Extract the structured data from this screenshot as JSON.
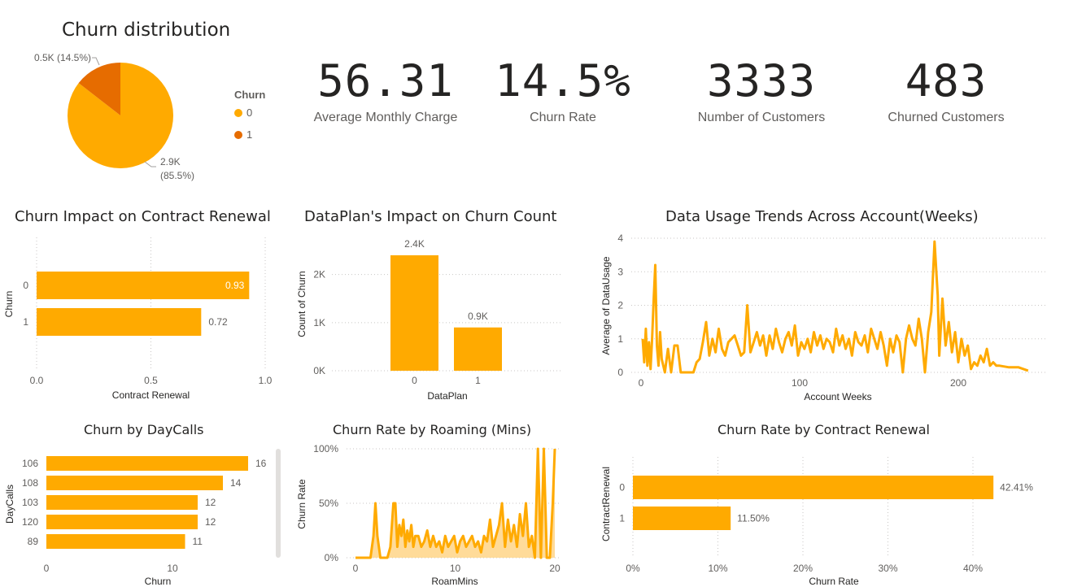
{
  "colors": {
    "orange": "#FFAA00",
    "dark_orange": "#E66C00",
    "fill": "#FFD27F"
  },
  "kpis": [
    {
      "value": "56.31",
      "label": "Average Monthly Charge"
    },
    {
      "value": "14.5%",
      "label": "Churn Rate"
    },
    {
      "value": "3333",
      "label": "Number of Customers"
    },
    {
      "value": "483",
      "label": "Churned Customers"
    }
  ],
  "chart_data": [
    {
      "type": "pie",
      "title": "Churn distribution",
      "legend_title": "Churn",
      "legend_placement": "right",
      "categories": [
        "0",
        "1"
      ],
      "values": [
        2850,
        483
      ],
      "data_labels": [
        "2.9K (85.5%)",
        "0.5K (14.5%)"
      ],
      "label_line1": [
        "2.9K",
        "0.5K (14.5%)"
      ],
      "label_line2": [
        "(85.5%)",
        ""
      ]
    },
    {
      "type": "bar",
      "orientation": "horizontal",
      "title": "Churn Impact on Contract Renewal",
      "categories": [
        "0",
        "1"
      ],
      "values": [
        0.93,
        0.72
      ],
      "data_labels": [
        "0.93",
        "0.72"
      ],
      "xlabel": "Contract Renewal",
      "ylabel": "Churn",
      "xlim": [
        0,
        1
      ],
      "x_ticks": [
        "0.0",
        "0.5",
        "1.0"
      ],
      "grid": true
    },
    {
      "type": "bar",
      "title": "DataPlan's Impact on Churn Count",
      "categories": [
        "0",
        "1"
      ],
      "values": [
        2400,
        900
      ],
      "data_labels": [
        "2.4K",
        "0.9K"
      ],
      "xlabel": "DataPlan",
      "ylabel": "Count of Churn",
      "ylim": [
        0,
        2400
      ],
      "y_ticks": [
        "0K",
        "1K",
        "2K"
      ],
      "grid": true
    },
    {
      "type": "line",
      "title": "Data Usage Trends Across Account(Weeks)",
      "xlabel": "Account Weeks",
      "ylabel": "Average of DataUsage",
      "xlim": [
        0,
        250
      ],
      "ylim": [
        0,
        4
      ],
      "x_ticks": [
        "0",
        "100",
        "200"
      ],
      "y_ticks": [
        "0",
        "1",
        "2",
        "3",
        "4"
      ],
      "grid": true,
      "x": [
        1,
        2,
        3,
        4,
        5,
        6,
        7,
        8,
        9,
        10,
        11,
        12,
        13,
        15,
        17,
        19,
        21,
        23,
        25,
        27,
        29,
        31,
        33,
        35,
        37,
        39,
        41,
        43,
        45,
        47,
        49,
        51,
        53,
        55,
        57,
        59,
        61,
        63,
        65,
        67,
        69,
        71,
        73,
        75,
        77,
        79,
        81,
        83,
        85,
        87,
        89,
        91,
        93,
        95,
        97,
        99,
        101,
        103,
        105,
        107,
        109,
        111,
        113,
        115,
        117,
        119,
        121,
        123,
        125,
        127,
        129,
        131,
        133,
        135,
        137,
        139,
        141,
        143,
        145,
        147,
        149,
        151,
        153,
        155,
        157,
        159,
        161,
        163,
        165,
        167,
        169,
        171,
        173,
        175,
        177,
        179,
        181,
        183,
        185,
        187,
        188,
        190,
        192,
        194,
        196,
        198,
        200,
        202,
        204,
        206,
        208,
        210,
        212,
        214,
        216,
        218,
        220,
        222,
        224,
        226,
        232,
        238,
        244
      ],
      "y": [
        1.0,
        0.3,
        1.3,
        0.2,
        0.9,
        0.1,
        1.0,
        2.2,
        3.2,
        0.8,
        0.2,
        1.2,
        0.4,
        0.0,
        0.7,
        0.0,
        0.8,
        0.8,
        0.0,
        0.0,
        0.0,
        0.0,
        0.0,
        0.3,
        0.4,
        0.9,
        1.5,
        0.5,
        1.0,
        0.6,
        1.3,
        0.7,
        0.5,
        0.9,
        1.0,
        1.1,
        0.8,
        0.5,
        0.6,
        2.0,
        0.6,
        0.9,
        1.2,
        0.8,
        1.1,
        0.5,
        1.1,
        0.7,
        1.3,
        0.9,
        0.6,
        1.0,
        1.2,
        0.8,
        1.4,
        0.5,
        0.9,
        0.7,
        1.0,
        0.6,
        1.2,
        0.8,
        1.1,
        0.7,
        1.0,
        0.9,
        0.6,
        1.3,
        0.8,
        1.1,
        0.7,
        1.0,
        0.5,
        1.2,
        0.9,
        0.8,
        1.1,
        0.6,
        1.3,
        1.0,
        0.7,
        1.2,
        0.8,
        0.2,
        1.0,
        0.6,
        1.1,
        0.9,
        0.0,
        1.0,
        1.4,
        1.0,
        0.8,
        1.6,
        1.0,
        0.0,
        1.2,
        1.8,
        3.9,
        2.3,
        0.5,
        2.2,
        0.8,
        1.5,
        0.6,
        1.2,
        0.3,
        1.0,
        0.5,
        0.8,
        0.1,
        0.3,
        0.2,
        0.5,
        0.3,
        0.7,
        0.2,
        0.3,
        0.2,
        0.2,
        0.15,
        0.15,
        0.05
      ]
    },
    {
      "type": "bar",
      "orientation": "horizontal",
      "title": "Churn by DayCalls",
      "categories": [
        "106",
        "108",
        "103",
        "120",
        "89"
      ],
      "values": [
        16,
        14,
        12,
        12,
        11
      ],
      "data_labels": [
        "16",
        "14",
        "12",
        "12",
        "11"
      ],
      "xlabel": "Churn",
      "ylabel": "DayCalls",
      "xlim": [
        0,
        17
      ],
      "x_ticks": [
        "0",
        "10"
      ],
      "grid": false
    },
    {
      "type": "area",
      "title": "Churn Rate by Roaming (Mins)",
      "xlabel": "RoamMins",
      "ylabel": "Churn Rate",
      "xlim": [
        0,
        20
      ],
      "ylim": [
        0,
        1
      ],
      "x_ticks": [
        "0",
        "10",
        "20"
      ],
      "y_ticks": [
        "0%",
        "50%",
        "100%"
      ],
      "grid": true,
      "x": [
        0,
        1.5,
        1.8,
        2.0,
        2.2,
        2.5,
        2.8,
        3.2,
        3.5,
        3.8,
        4.0,
        4.2,
        4.4,
        4.6,
        4.8,
        5.0,
        5.2,
        5.4,
        5.6,
        5.8,
        6.0,
        6.3,
        6.6,
        6.9,
        7.2,
        7.5,
        7.8,
        8.1,
        8.4,
        8.7,
        9.0,
        9.3,
        9.6,
        9.9,
        10.2,
        10.5,
        10.8,
        11.1,
        11.4,
        11.7,
        12.0,
        12.3,
        12.6,
        12.9,
        13.2,
        13.5,
        13.8,
        14.1,
        14.4,
        14.7,
        15.0,
        15.3,
        15.6,
        15.9,
        16.2,
        16.5,
        16.8,
        17.1,
        17.4,
        17.7,
        18.0,
        18.3,
        18.6,
        18.9,
        19.2,
        19.5,
        19.8,
        20.0
      ],
      "y": [
        0,
        0,
        0.2,
        0.5,
        0.2,
        0,
        0,
        0,
        0.1,
        0.5,
        0.5,
        0.1,
        0.3,
        0.2,
        0.35,
        0.1,
        0.25,
        0.15,
        0.3,
        0.1,
        0.2,
        0.2,
        0.1,
        0.15,
        0.25,
        0.1,
        0.2,
        0.1,
        0.15,
        0.05,
        0.2,
        0.1,
        0.15,
        0.2,
        0.05,
        0.15,
        0.2,
        0.1,
        0.15,
        0.2,
        0.1,
        0.15,
        0.05,
        0.2,
        0.15,
        0.35,
        0.1,
        0.2,
        0.3,
        0.5,
        0.1,
        0.35,
        0.15,
        0.3,
        0.1,
        0.4,
        0.2,
        0.5,
        0.1,
        0.2,
        0,
        1.0,
        0,
        1.0,
        0,
        0,
        0.5,
        1.0
      ]
    },
    {
      "type": "bar",
      "orientation": "horizontal",
      "title": "Churn Rate by Contract Renewal",
      "categories": [
        "0",
        "1"
      ],
      "values": [
        42.41,
        11.5
      ],
      "data_labels": [
        "42.41%",
        "11.50%"
      ],
      "xlabel": "Churn Rate",
      "ylabel": "ContractRenewal",
      "xlim": [
        0,
        45
      ],
      "x_ticks": [
        "0%",
        "10%",
        "20%",
        "30%",
        "40%"
      ],
      "grid": true
    }
  ]
}
